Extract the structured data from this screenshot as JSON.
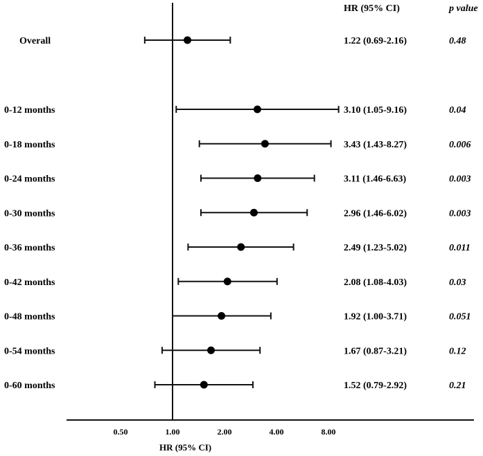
{
  "chart_data": {
    "type": "forest",
    "scale": "log2",
    "reference_value": 1.0,
    "xlabel": "HR (95% CI)",
    "xticks": [
      0.5,
      1.0,
      2.0,
      4.0,
      8.0
    ],
    "xtick_labels": [
      "0.50",
      "1.00",
      "2.00",
      "4.00",
      "8.00"
    ],
    "xlim": [
      0.32,
      16
    ],
    "column_headers": {
      "hr": "HR (95% CI)",
      "p": "p value"
    },
    "rows": [
      {
        "label": "Overall",
        "hr": 1.22,
        "lo": 0.69,
        "hi": 2.16,
        "hr_text": "1.22 (0.69-2.16)",
        "p": "0.48",
        "group": "overall"
      },
      {
        "label": "0-12 months",
        "hr": 3.1,
        "lo": 1.05,
        "hi": 9.16,
        "hr_text": "3.10 (1.05-9.16)",
        "p": "0.04",
        "group": "interval"
      },
      {
        "label": "0-18 months",
        "hr": 3.43,
        "lo": 1.43,
        "hi": 8.27,
        "hr_text": "3.43 (1.43-8.27)",
        "p": "0.006",
        "group": "interval"
      },
      {
        "label": "0-24 months",
        "hr": 3.11,
        "lo": 1.46,
        "hi": 6.63,
        "hr_text": "3.11 (1.46-6.63)",
        "p": "0.003",
        "group": "interval"
      },
      {
        "label": "0-30 months",
        "hr": 2.96,
        "lo": 1.46,
        "hi": 6.02,
        "hr_text": "2.96 (1.46-6.02)",
        "p": "0.003",
        "group": "interval"
      },
      {
        "label": "0-36 months",
        "hr": 2.49,
        "lo": 1.23,
        "hi": 5.02,
        "hr_text": "2.49 (1.23-5.02)",
        "p": "0.011",
        "group": "interval"
      },
      {
        "label": "0-42 months",
        "hr": 2.08,
        "lo": 1.08,
        "hi": 4.03,
        "hr_text": "2.08 (1.08-4.03)",
        "p": "0.03",
        "group": "interval"
      },
      {
        "label": "0-48 months",
        "hr": 1.92,
        "lo": 1.0,
        "hi": 3.71,
        "hr_text": "1.92 (1.00-3.71)",
        "p": "0.051",
        "group": "interval"
      },
      {
        "label": "0-54 months",
        "hr": 1.67,
        "lo": 0.87,
        "hi": 3.21,
        "hr_text": "1.67 (0.87-3.21)",
        "p": "0.12",
        "group": "interval"
      },
      {
        "label": "0-60 months",
        "hr": 1.52,
        "lo": 0.79,
        "hi": 2.92,
        "hr_text": "1.52 (0.79-2.92)",
        "p": "0.21",
        "group": "interval"
      }
    ],
    "marker_color": "#000000",
    "line_color": "#111111"
  }
}
